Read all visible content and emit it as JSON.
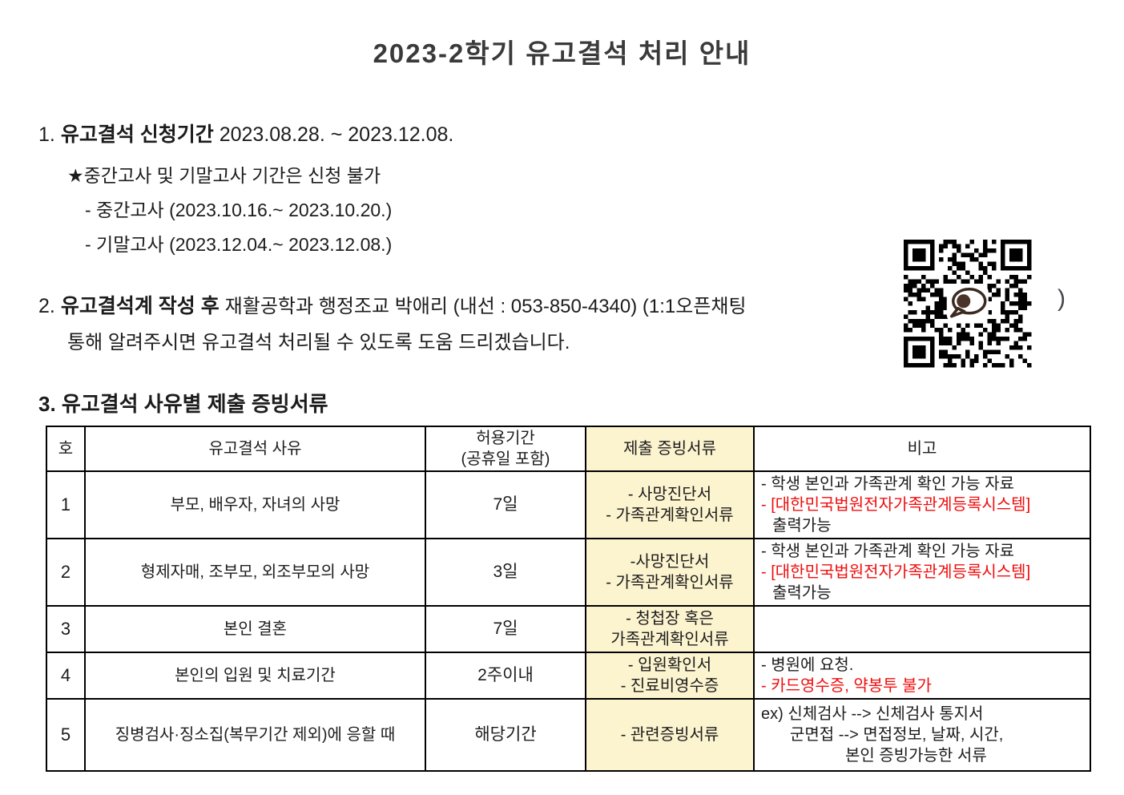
{
  "title": "2023-2학기 유고결석 처리 안내",
  "section1": {
    "number": "1.",
    "heading_bold": "유고결석 신청기간",
    "heading_rest": "2023.08.28. ~ 2023.12.08.",
    "note": "★중간고사 및 기말고사 기간은 신청 불가",
    "items": [
      "- 중간고사 (2023.10.16.~ 2023.10.20.)",
      "- 기말고사 (2023.12.04.~ 2023.12.08.)"
    ]
  },
  "section2": {
    "number": "2.",
    "heading_bold": "유고결석계 작성 후",
    "line1_rest": "재활공학과 행정조교 박애리 (내선 : 053-850-4340) (1:1오픈채팅",
    "line1_close": ")",
    "line2": "통해 알려주시면 유고결석 처리될 수 있도록 도움 드리겠습니다.",
    "qr_meaning": "kakao-open-chat-qr-code"
  },
  "section3": {
    "heading": "3. 유고결석 사유별 제출 증빙서류",
    "table": {
      "headers": {
        "no": "호",
        "reason": "유고결석 사유",
        "period_line1": "허용기간",
        "period_line2": "(공휴일 포함)",
        "docs": "제출 증빙서류",
        "remarks": "비고"
      },
      "rows": [
        {
          "no": "1",
          "reason": "부모, 배우자, 자녀의 사망",
          "period": "7일",
          "docs": [
            "- 사망진단서",
            "- 가족관계확인서류"
          ],
          "remarks": [
            {
              "t": "- 학생 본인과 가족관계 확인 가능 자료",
              "red": false,
              "indent": 0
            },
            {
              "t": "- [대한민국법원전자가족관계등록시스템]",
              "red": true,
              "indent": 0
            },
            {
              "t": "출력가능",
              "red": false,
              "indent": 14
            }
          ]
        },
        {
          "no": "2",
          "reason": "형제자매, 조부모, 외조부모의 사망",
          "period": "3일",
          "docs": [
            "-사망진단서",
            "- 가족관계확인서류"
          ],
          "remarks": [
            {
              "t": "- 학생 본인과 가족관계 확인 가능 자료",
              "red": false,
              "indent": 0
            },
            {
              "t": "- [대한민국법원전자가족관계등록시스템]",
              "red": true,
              "indent": 0
            },
            {
              "t": "출력가능",
              "red": false,
              "indent": 14
            }
          ]
        },
        {
          "no": "3",
          "reason": "본인 결혼",
          "period": "7일",
          "docs": [
            "- 청첩장 혹은",
            "가족관계확인서류"
          ],
          "remarks": []
        },
        {
          "no": "4",
          "reason": "본인의 입원 및 치료기간",
          "period": "2주이내",
          "docs": [
            "- 입원확인서",
            "- 진료비영수증"
          ],
          "remarks": [
            {
              "t": "- 병원에 요청.",
              "red": false,
              "indent": 0
            },
            {
              "t": "- 카드영수증, 약봉투 불가",
              "red": true,
              "indent": 0
            }
          ]
        },
        {
          "no": "5",
          "reason": "징병검사·징소집(복무기간 제외)에 응할 때",
          "period": "해당기간",
          "docs": [
            "- 관련증빙서류"
          ],
          "remarks": [
            {
              "t": "ex) 신체검사 --> 신체검사 통지서",
              "red": false,
              "indent": 0
            },
            {
              "t": "군면접 --> 면접정보, 날짜, 시간,",
              "red": false,
              "indent": 36
            },
            {
              "t": "본인 증빙가능한 서류",
              "red": false,
              "indent": 105
            }
          ]
        }
      ]
    }
  },
  "colors": {
    "accent_yellow": "#FCF3CF",
    "alert_red": "#F00D0D",
    "title_gray": "#3A3A3A"
  }
}
